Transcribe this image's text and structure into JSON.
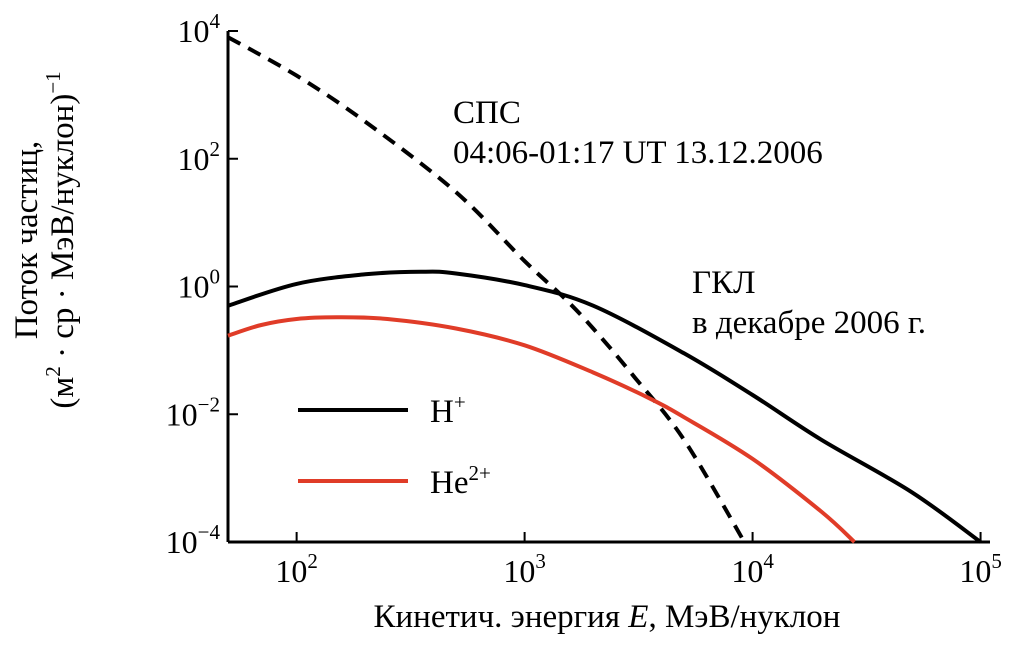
{
  "chart_data": {
    "type": "line",
    "xlabel_main": "Кинетич. энергия ",
    "xlabel_italic": "E",
    "xlabel_unit": ", МэВ/нуклон",
    "ylabel_line1": "Поток частиц,",
    "ylabel_line2_pre": "(м",
    "ylabel_line2_sup": "2",
    "ylabel_line2_post": " · ср · МэВ/нуклон)",
    "ylabel_line2_exp": "−1",
    "x_scale": "log",
    "y_scale": "log",
    "xlim": [
      50,
      110000
    ],
    "ylim": [
      0.0001,
      10000
    ],
    "x_ticks": [
      {
        "value": 100,
        "base": "10",
        "exp": "2"
      },
      {
        "value": 1000,
        "base": "10",
        "exp": "3"
      },
      {
        "value": 10000,
        "base": "10",
        "exp": "4"
      },
      {
        "value": 100000,
        "base": "10",
        "exp": "5"
      }
    ],
    "y_ticks": [
      {
        "value": 0.0001,
        "base": "10",
        "exp": "−4"
      },
      {
        "value": 0.01,
        "base": "10",
        "exp": "−2"
      },
      {
        "value": 1,
        "base": "10",
        "exp": "0"
      },
      {
        "value": 100,
        "base": "10",
        "exp": "2"
      },
      {
        "value": 10000,
        "base": "10",
        "exp": "4"
      }
    ],
    "series": [
      {
        "key": "sps",
        "color": "#000000",
        "style": "dashed",
        "points": [
          [
            50,
            8000
          ],
          [
            100,
            2000
          ],
          [
            200,
            380
          ],
          [
            500,
            30
          ],
          [
            1000,
            2.5
          ],
          [
            1500,
            0.65
          ],
          [
            2000,
            0.22
          ],
          [
            3000,
            0.04
          ],
          [
            5000,
            0.004
          ],
          [
            9200,
            0.0001
          ]
        ]
      },
      {
        "key": "h",
        "name": "H",
        "name_sup": "+",
        "color": "#000000",
        "style": "solid",
        "points": [
          [
            50,
            0.5
          ],
          [
            100,
            1.1
          ],
          [
            200,
            1.55
          ],
          [
            350,
            1.7
          ],
          [
            500,
            1.6
          ],
          [
            1000,
            1.05
          ],
          [
            2000,
            0.5
          ],
          [
            5000,
            0.09
          ],
          [
            10000,
            0.02
          ],
          [
            20000,
            0.004
          ],
          [
            50000,
            0.0006
          ],
          [
            100000,
            0.0001
          ]
        ]
      },
      {
        "key": "he",
        "name": "He",
        "name_sup": "2+",
        "color": "#e03c28",
        "style": "solid",
        "points": [
          [
            50,
            0.17
          ],
          [
            70,
            0.25
          ],
          [
            100,
            0.31
          ],
          [
            150,
            0.33
          ],
          [
            250,
            0.31
          ],
          [
            500,
            0.22
          ],
          [
            1000,
            0.12
          ],
          [
            2000,
            0.045
          ],
          [
            3500,
            0.018
          ],
          [
            5000,
            0.009
          ],
          [
            10000,
            0.002
          ],
          [
            20000,
            0.0003
          ],
          [
            28000,
            0.0001
          ]
        ]
      }
    ],
    "legend_placement": "lower-left",
    "annotations": [
      {
        "key": "sps",
        "lines": [
          "СПС",
          "04:06-01:17 UT 13.12.2006"
        ]
      },
      {
        "key": "gcr",
        "lines": [
          "ГКЛ",
          "в декабре 2006 г."
        ]
      }
    ],
    "grid": false
  }
}
